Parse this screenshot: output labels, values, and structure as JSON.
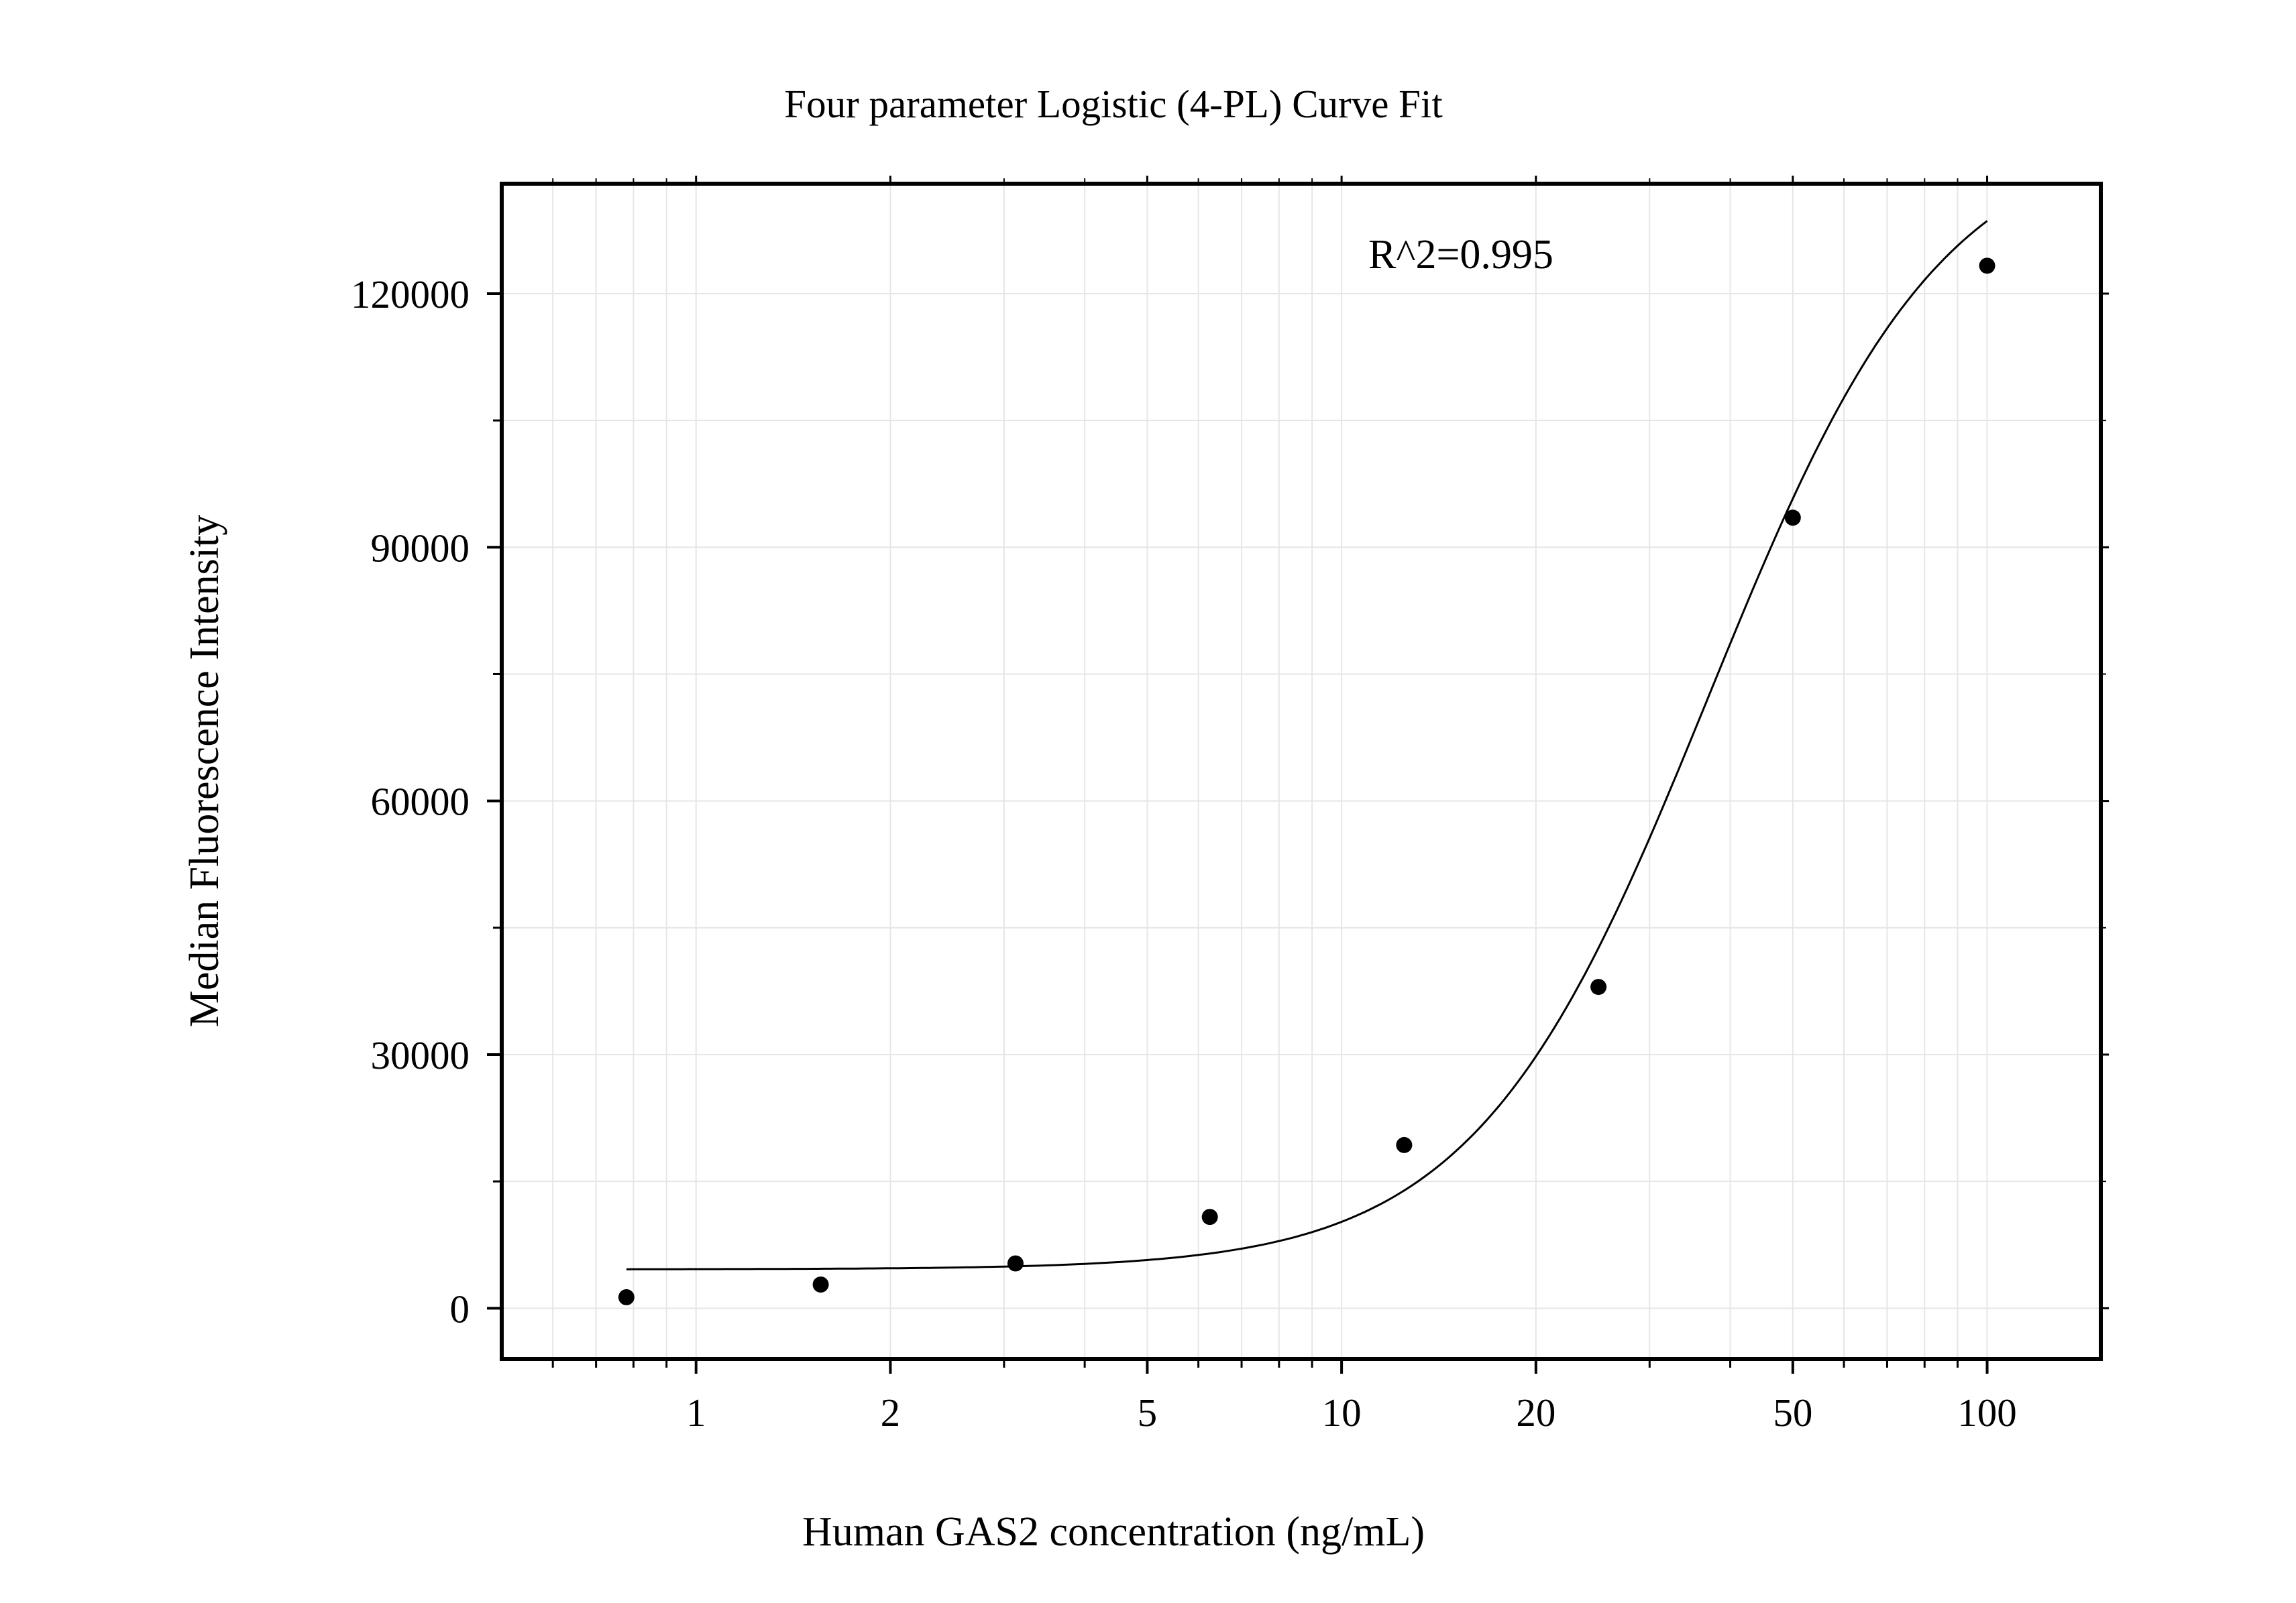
{
  "chart_data": {
    "type": "scatter",
    "title": "Four parameter Logistic (4-PL) Curve Fit",
    "xlabel": "Human GAS2 concentration (ng/mL)",
    "ylabel": "Median Fluorescence Intensity",
    "annotation": "R^2=0.995",
    "x_scale": "log",
    "xlim": [
      0.5,
      150
    ],
    "ylim": [
      -6000,
      133000
    ],
    "x_ticks": [
      1,
      2,
      5,
      10,
      20,
      50,
      100
    ],
    "x_tick_labels": [
      "1",
      "2",
      "5",
      "10",
      "20",
      "50",
      "100"
    ],
    "y_ticks": [
      0,
      30000,
      60000,
      90000,
      120000
    ],
    "y_tick_labels": [
      "0",
      "30000",
      "60000",
      "90000",
      "120000"
    ],
    "grid": true,
    "legend": "none",
    "series": [
      {
        "type": "scatter",
        "x": [
          0.78,
          1.56,
          3.125,
          6.25,
          12.5,
          25,
          50,
          100
        ],
        "y": [
          1300,
          2800,
          5300,
          10800,
          19300,
          38000,
          93500,
          123300
        ]
      },
      {
        "type": "line",
        "fit": "4PL",
        "x_range": [
          0.78,
          100
        ],
        "params": {
          "A": 4600,
          "D": 140000,
          "C": 37,
          "B": 2.4
        }
      }
    ],
    "colors": {
      "marks": "#000000",
      "grid": "#e6e6e6",
      "axes": "#000000"
    }
  }
}
